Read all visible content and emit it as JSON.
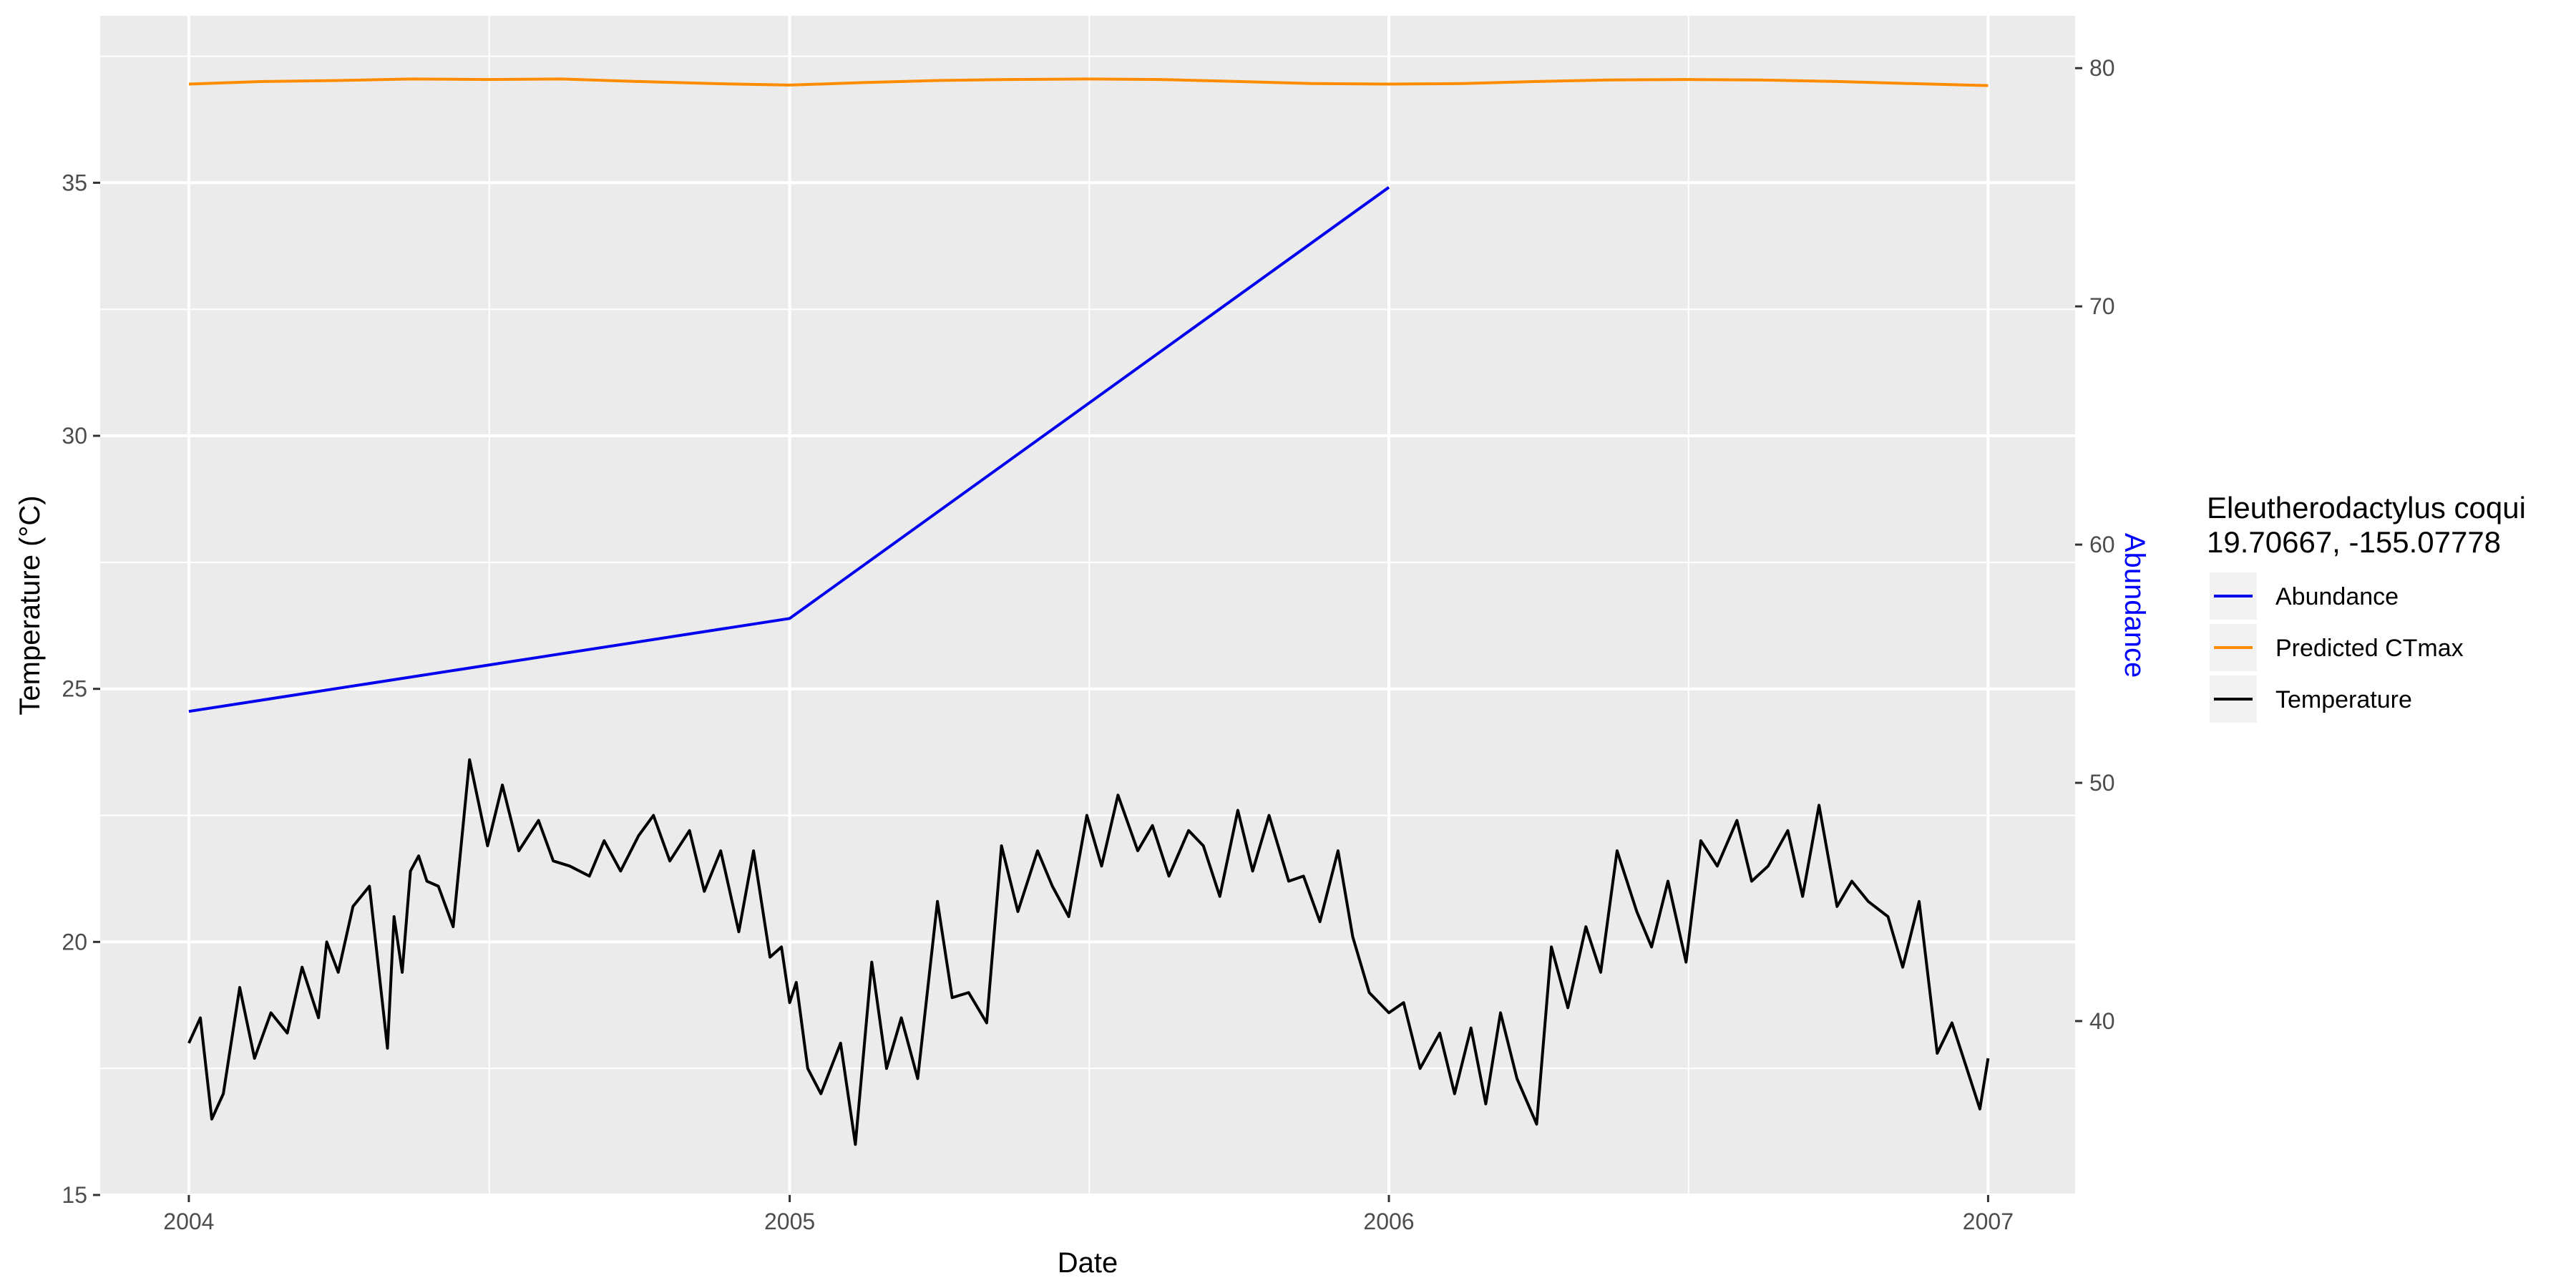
{
  "chart_data": {
    "type": "line",
    "xlabel": "Date",
    "ylabel": "Temperature (°C)",
    "y2label": "Abundance",
    "x_ticks": [
      "2004",
      "2005",
      "2006",
      "2007"
    ],
    "x_range": [
      "2003-11-08",
      "2007-02-23"
    ],
    "ylim": [
      15,
      38.3
    ],
    "y_ticks": [
      15,
      20,
      25,
      30,
      35
    ],
    "y2lim": [
      32.7,
      82.2
    ],
    "y2_ticks": [
      40,
      50,
      60,
      70,
      80
    ],
    "grid": true,
    "legend": {
      "title": "Eleutherodactylus coqui",
      "subtitle": "19.70667, -155.07778",
      "position": "right",
      "entries": [
        "Abundance",
        "Predicted CTmax",
        "Temperature"
      ]
    },
    "colors": {
      "Abundance": "#0000ee",
      "Predicted CTmax": "#ff8c00",
      "Temperature": "#000000",
      "y2label": "#0000ff",
      "panel": "#ebebeb",
      "grid": "#ffffff"
    },
    "series": [
      {
        "name": "Abundance",
        "axis": "right",
        "x": [
          "2004-01-01",
          "2005-01-01",
          "2006-01-01"
        ],
        "values": [
          53.0,
          56.9,
          75.0
        ]
      },
      {
        "name": "Predicted CTmax",
        "axis": "left",
        "x": [
          "2004-01-01",
          "2004-02-15",
          "2004-04-01",
          "2004-05-15",
          "2004-07-01",
          "2004-08-15",
          "2004-10-01",
          "2004-11-15",
          "2005-01-01",
          "2005-02-15",
          "2005-04-01",
          "2005-05-15",
          "2005-07-01",
          "2005-08-15",
          "2005-10-01",
          "2005-11-15",
          "2006-01-01",
          "2006-02-15",
          "2006-04-01",
          "2006-05-15",
          "2006-07-01",
          "2006-08-15",
          "2006-10-01",
          "2006-11-15",
          "2007-01-01"
        ],
        "values": [
          36.95,
          37.0,
          37.02,
          37.05,
          37.04,
          37.05,
          37.0,
          36.96,
          36.93,
          36.98,
          37.02,
          37.04,
          37.05,
          37.04,
          37.0,
          36.96,
          36.95,
          36.96,
          37.0,
          37.03,
          37.04,
          37.03,
          37.0,
          36.96,
          36.92
        ]
      },
      {
        "name": "Temperature",
        "axis": "left",
        "x": [
          "2004-01-01",
          "2004-01-08",
          "2004-01-15",
          "2004-01-22",
          "2004-02-01",
          "2004-02-10",
          "2004-02-20",
          "2004-03-01",
          "2004-03-10",
          "2004-03-20",
          "2004-03-25",
          "2004-04-01",
          "2004-04-10",
          "2004-04-20",
          "2004-05-01",
          "2004-05-05",
          "2004-05-10",
          "2004-05-15",
          "2004-05-20",
          "2004-05-25",
          "2004-06-01",
          "2004-06-10",
          "2004-06-20",
          "2004-07-01",
          "2004-07-10",
          "2004-07-20",
          "2004-08-01",
          "2004-08-10",
          "2004-08-20",
          "2004-09-01",
          "2004-09-10",
          "2004-09-20",
          "2004-10-01",
          "2004-10-10",
          "2004-10-20",
          "2004-11-01",
          "2004-11-10",
          "2004-11-20",
          "2004-12-01",
          "2004-12-10",
          "2004-12-20",
          "2004-12-27",
          "2005-01-01",
          "2005-01-05",
          "2005-01-12",
          "2005-01-20",
          "2005-02-01",
          "2005-02-10",
          "2005-02-20",
          "2005-03-01",
          "2005-03-10",
          "2005-03-20",
          "2005-04-01",
          "2005-04-10",
          "2005-04-20",
          "2005-05-01",
          "2005-05-10",
          "2005-05-20",
          "2005-06-01",
          "2005-06-10",
          "2005-06-20",
          "2005-07-01",
          "2005-07-10",
          "2005-07-20",
          "2005-08-01",
          "2005-08-10",
          "2005-08-20",
          "2005-09-01",
          "2005-09-10",
          "2005-09-20",
          "2005-10-01",
          "2005-10-10",
          "2005-10-20",
          "2005-11-01",
          "2005-11-10",
          "2005-11-20",
          "2005-12-01",
          "2005-12-10",
          "2005-12-20",
          "2006-01-01",
          "2006-01-10",
          "2006-01-20",
          "2006-02-01",
          "2006-02-10",
          "2006-02-20",
          "2006-03-01",
          "2006-03-10",
          "2006-03-20",
          "2006-04-01",
          "2006-04-10",
          "2006-04-20",
          "2006-05-01",
          "2006-05-10",
          "2006-05-20",
          "2006-06-01",
          "2006-06-10",
          "2006-06-20",
          "2006-07-01",
          "2006-07-10",
          "2006-07-20",
          "2006-08-01",
          "2006-08-10",
          "2006-08-20",
          "2006-09-01",
          "2006-09-10",
          "2006-09-20",
          "2006-10-01",
          "2006-10-10",
          "2006-10-20",
          "2006-11-01",
          "2006-11-10",
          "2006-11-20",
          "2006-12-01",
          "2006-12-10",
          "2006-12-20",
          "2006-12-27",
          "2007-01-01"
        ],
        "values": [
          18.0,
          18.5,
          16.5,
          17.0,
          19.1,
          17.7,
          18.6,
          18.2,
          19.5,
          18.5,
          20.0,
          19.4,
          20.7,
          21.1,
          17.9,
          20.5,
          19.4,
          21.4,
          21.7,
          21.2,
          21.1,
          20.3,
          23.6,
          21.9,
          23.1,
          21.8,
          22.4,
          21.6,
          21.5,
          21.3,
          22.0,
          21.4,
          22.1,
          22.5,
          21.6,
          22.2,
          21.0,
          21.8,
          20.2,
          21.8,
          19.7,
          19.9,
          18.8,
          19.2,
          17.5,
          17.0,
          18.0,
          16.0,
          19.6,
          17.5,
          18.5,
          17.3,
          20.8,
          18.9,
          19.0,
          18.4,
          21.9,
          20.6,
          21.8,
          21.1,
          20.5,
          22.5,
          21.5,
          22.9,
          21.8,
          22.3,
          21.3,
          22.2,
          21.9,
          20.9,
          22.6,
          21.4,
          22.5,
          21.2,
          21.3,
          20.4,
          21.8,
          20.1,
          19.0,
          18.6,
          18.8,
          17.5,
          18.2,
          17.0,
          18.3,
          16.8,
          18.6,
          17.3,
          16.4,
          19.9,
          18.7,
          20.3,
          19.4,
          21.8,
          20.6,
          19.9,
          21.2,
          19.6,
          22.0,
          21.5,
          22.4,
          21.2,
          21.5,
          22.2,
          20.9,
          22.7,
          20.7,
          21.2,
          20.8,
          20.5,
          19.5,
          20.8,
          17.8,
          18.4,
          17.4,
          16.7,
          17.7
        ]
      }
    ]
  }
}
